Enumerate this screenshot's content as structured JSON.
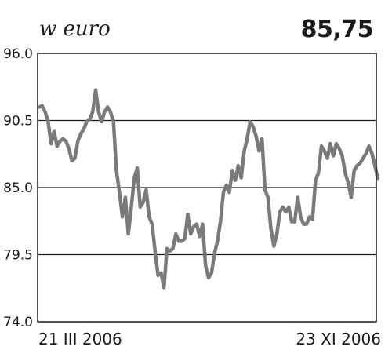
{
  "header": {
    "unit_label": "w euro",
    "latest_value": "85,75"
  },
  "chart_data": {
    "type": "line",
    "ylim": [
      74.0,
      96.0
    ],
    "yticks": [
      "96.0",
      "90.5",
      "85.0",
      "79.5",
      "74.0"
    ],
    "ytick_values": [
      96.0,
      90.5,
      85.0,
      79.5,
      74.0
    ],
    "grid": true,
    "x_start_label": "21 III 2006",
    "x_end_label": "23 XI 2006",
    "line_color": "#7a7a7a",
    "series": [
      {
        "values": [
          91.6,
          91.7,
          91.2,
          90.4,
          88.6,
          89.6,
          88.4,
          88.8,
          89.0,
          88.8,
          88.2,
          87.2,
          87.4,
          88.8,
          89.4,
          89.8,
          90.4,
          90.6,
          91.2,
          93.0,
          91.2,
          90.4,
          91.2,
          91.6,
          91.2,
          90.4,
          86.4,
          84.6,
          82.6,
          84.2,
          81.2,
          83.4,
          85.8,
          86.6,
          83.4,
          83.8,
          84.8,
          82.6,
          82.0,
          79.8,
          77.8,
          78.0,
          76.8,
          80.0,
          79.8,
          80.0,
          81.2,
          80.6,
          80.6,
          80.8,
          82.8,
          81.2,
          81.8,
          82.0,
          81.0,
          82.0,
          78.6,
          77.6,
          78.0,
          79.6,
          80.6,
          82.2,
          84.6,
          85.2,
          84.6,
          86.4,
          85.6,
          86.8,
          85.8,
          88.0,
          89.0,
          90.4,
          90.0,
          89.2,
          88.0,
          89.0,
          84.8,
          84.2,
          81.6,
          80.2,
          81.2,
          83.0,
          83.4,
          83.0,
          83.4,
          82.2,
          82.2,
          84.2,
          82.6,
          82.0,
          82.0,
          82.6,
          82.4,
          85.6,
          86.2,
          88.4,
          88.0,
          87.4,
          88.6,
          87.6,
          88.6,
          88.2,
          87.6,
          86.2,
          85.4,
          84.2,
          86.4,
          86.8,
          87.0,
          87.4,
          87.8,
          88.4,
          87.8,
          86.8,
          85.75
        ]
      }
    ]
  }
}
